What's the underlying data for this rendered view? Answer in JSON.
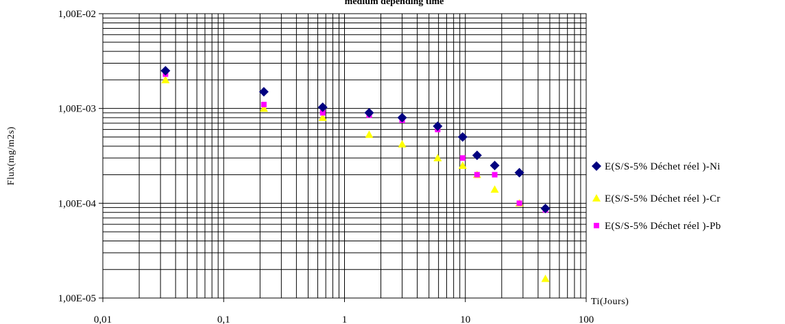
{
  "chart_data": {
    "type": "scatter",
    "title": "medium depending time",
    "xlabel": "Ti(Jours)",
    "ylabel": "Flux(mg/m2s)",
    "x_scale": "log",
    "y_scale": "log",
    "xlim": [
      0.01,
      100
    ],
    "ylim": [
      1e-05,
      0.01
    ],
    "x_tick_labels": [
      "0,01",
      "0,1",
      "1",
      "10",
      "100"
    ],
    "y_tick_labels": [
      "1,00E-05",
      "1,00E-04",
      "1,00E-03",
      "1,00E-02"
    ],
    "grid": true,
    "legend_position": "right",
    "series": [
      {
        "name": "E(S/S-5% Déchet réel )-Ni",
        "marker": "diamond",
        "color": "#000080",
        "x": [
          0.033,
          0.215,
          0.66,
          1.6,
          3.0,
          5.9,
          9.5,
          12.5,
          17.5,
          28,
          46
        ],
        "y": [
          0.0025,
          0.0015,
          0.00103,
          0.0009,
          0.0008,
          0.00065,
          0.0005,
          0.00032,
          0.00025,
          0.00021,
          8.8e-05
        ]
      },
      {
        "name": "E(S/S-5% Déchet réel )-Cr",
        "marker": "triangle",
        "color": "#FFFF00",
        "x": [
          0.033,
          0.215,
          0.66,
          1.6,
          3.0,
          5.9,
          9.5,
          12.5,
          17.5,
          28,
          46
        ],
        "y": [
          0.002,
          0.001,
          0.0008,
          0.00053,
          0.00042,
          0.0003,
          0.00025,
          0.0002,
          0.00014,
          0.0001,
          1.6e-05
        ]
      },
      {
        "name": "E(S/S-5% Déchet réel )-Pb",
        "marker": "square",
        "color": "#FF00FF",
        "x": [
          0.033,
          0.215,
          0.66,
          1.6,
          3.0,
          5.9,
          9.5,
          12.5,
          17.5,
          28,
          46
        ],
        "y": [
          0.0023,
          0.0011,
          0.0009,
          0.00085,
          0.00075,
          0.0006,
          0.0003,
          0.0002,
          0.0002,
          0.0001,
          8.5e-05
        ]
      }
    ]
  }
}
